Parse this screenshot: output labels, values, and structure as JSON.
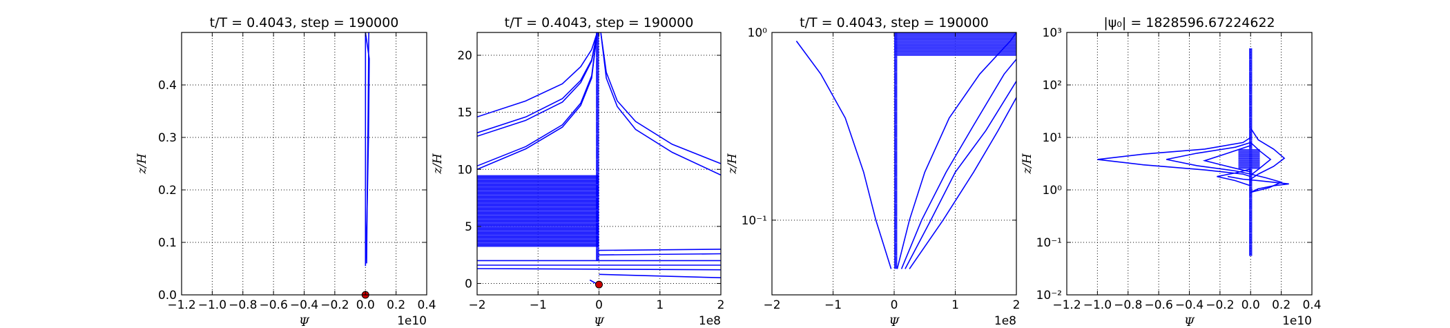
{
  "chart_data": [
    {
      "type": "line",
      "title": "t/T = 0.4043, step = 190000",
      "xlabel": "Ψ",
      "ylabel": "z/H",
      "xlim": [
        -1.2,
        0.4
      ],
      "ylim": [
        0,
        0.5
      ],
      "x_multiplier": "1e10",
      "xticks": [
        "−1.2",
        "−1.0",
        "−0.8",
        "−0.6",
        "−0.4",
        "−0.2",
        "0.0",
        "0.2",
        "0.4"
      ],
      "yticks": [
        "0.0",
        "0.1",
        "0.2",
        "0.3",
        "0.4"
      ],
      "grid": true,
      "line_color": "#0000ff",
      "marker_color": "#cc0000",
      "series": [
        {
          "x": [
            0.0,
            0.01,
            0.02,
            0.025,
            0.0,
            0.0
          ],
          "y": [
            0.055,
            0.15,
            0.3,
            0.45,
            0.5,
            0.055
          ]
        },
        {
          "x": [
            0.008,
            0.012,
            0.018,
            0.022
          ],
          "y": [
            0.06,
            0.2,
            0.35,
            0.5
          ]
        }
      ],
      "markers": [
        {
          "x": 0.0,
          "y": 0.0
        }
      ]
    },
    {
      "type": "line",
      "title": "t/T = 0.4043, step = 190000",
      "xlabel": "Ψ",
      "ylabel": "z/H",
      "xlim": [
        -2,
        2
      ],
      "ylim": [
        -1,
        22
      ],
      "x_multiplier": "1e8",
      "xticks": [
        "−2",
        "−1",
        "0",
        "1",
        "2"
      ],
      "yticks": [
        "0",
        "5",
        "10",
        "15",
        "20"
      ],
      "grid": true,
      "line_color": "#0000ff",
      "marker_color": "#cc0000",
      "series": [
        {
          "x": [
            -2.0,
            -1.2,
            -0.6,
            -0.3,
            -0.12,
            -0.03
          ],
          "y": [
            14.6,
            16.0,
            17.5,
            19.0,
            20.5,
            22.0
          ]
        },
        {
          "x": [
            -2.0,
            -1.2,
            -0.6,
            -0.3,
            -0.12,
            -0.03
          ],
          "y": [
            13.2,
            14.6,
            16.2,
            17.8,
            19.6,
            22.0
          ]
        },
        {
          "x": [
            -2.0,
            -1.2,
            -0.6,
            -0.3,
            -0.12,
            -0.03
          ],
          "y": [
            12.9,
            14.3,
            15.9,
            17.6,
            19.5,
            22.0
          ]
        },
        {
          "x": [
            -2.0,
            -1.2,
            -0.6,
            -0.3,
            -0.12,
            -0.03
          ],
          "y": [
            10.3,
            12.0,
            13.9,
            15.8,
            18.2,
            22.0
          ]
        },
        {
          "x": [
            -2.0,
            -1.2,
            -0.6,
            -0.3,
            -0.12,
            -0.03
          ],
          "y": [
            10.0,
            11.8,
            13.7,
            15.6,
            18.0,
            22.0
          ]
        },
        {
          "x": [
            2.0,
            1.2,
            0.6,
            0.3,
            0.12,
            0.03
          ],
          "y": [
            10.5,
            12.2,
            14.2,
            16.0,
            18.5,
            22.0
          ]
        },
        {
          "x": [
            2.0,
            1.2,
            0.6,
            0.3,
            0.12,
            0.03
          ],
          "y": [
            9.5,
            11.5,
            13.5,
            15.5,
            18.0,
            22.0
          ]
        },
        {
          "x": [
            0.0,
            2.0
          ],
          "y": [
            2.9,
            3.0
          ]
        },
        {
          "x": [
            0.0,
            2.0
          ],
          "y": [
            2.5,
            2.6
          ]
        },
        {
          "x": [
            -2.0,
            2.0
          ],
          "y": [
            2.0,
            2.0
          ]
        },
        {
          "x": [
            -2.0,
            2.0
          ],
          "y": [
            1.6,
            1.6
          ]
        },
        {
          "x": [
            -2.0,
            2.0
          ],
          "y": [
            1.3,
            1.2
          ]
        },
        {
          "x": [
            0.0,
            2.0
          ],
          "y": [
            0.8,
            0.5
          ]
        },
        {
          "x": [
            -0.15,
            -0.05,
            0.0,
            0.05
          ],
          "y": [
            0.3,
            0.0,
            -0.1,
            0.0
          ]
        }
      ],
      "fill_bands": [
        {
          "x_from": -2.0,
          "x_to": 0.0,
          "y_from": 3.2,
          "y_to": 9.5
        },
        {
          "x_from": -0.05,
          "x_to": 0.0,
          "y_from": 2.0,
          "y_to": 22.0
        }
      ],
      "markers": [
        {
          "x": 0.0,
          "y": -0.1
        }
      ]
    },
    {
      "type": "line",
      "title": "t/T = 0.4043, step = 190000",
      "xlabel": "Ψ",
      "ylabel": "z/H",
      "xlim": [
        -2,
        2
      ],
      "ylim": [
        0.04,
        1.0
      ],
      "yscale": "log",
      "x_multiplier": "1e8",
      "xticks": [
        "−2",
        "−1",
        "0",
        "1",
        "2"
      ],
      "yticks": [
        "10⁻¹",
        "10⁰"
      ],
      "grid": true,
      "line_color": "#0000ff",
      "series": [
        {
          "x": [
            -1.6,
            -1.2,
            -0.8,
            -0.5,
            -0.3,
            -0.15,
            -0.05
          ],
          "y": [
            0.9,
            0.6,
            0.35,
            0.18,
            0.1,
            0.07,
            0.055
          ]
        },
        {
          "x": [
            0.05,
            0.25,
            0.5,
            0.9,
            1.4,
            1.9,
            2.0
          ],
          "y": [
            0.055,
            0.1,
            0.18,
            0.35,
            0.6,
            0.9,
            1.0
          ]
        },
        {
          "x": [
            0.12,
            0.45,
            0.85,
            1.3,
            1.8,
            2.0
          ],
          "y": [
            0.055,
            0.1,
            0.18,
            0.32,
            0.6,
            0.72
          ]
        },
        {
          "x": [
            0.18,
            0.6,
            1.0,
            1.5,
            2.0
          ],
          "y": [
            0.055,
            0.1,
            0.18,
            0.3,
            0.55
          ]
        },
        {
          "x": [
            0.25,
            0.8,
            1.3,
            1.7,
            2.0
          ],
          "y": [
            0.055,
            0.1,
            0.18,
            0.3,
            0.45
          ]
        }
      ],
      "fill_bands": [
        {
          "x_from": 0.0,
          "x_to": 0.05,
          "y_from": 0.055,
          "y_to": 1.0
        },
        {
          "x_from": 0.0,
          "x_to": 2.0,
          "y_from": 0.75,
          "y_to": 1.0
        }
      ]
    },
    {
      "type": "line",
      "title": "|ψ₀| = 1828596.67224622",
      "xlabel": "Ψ",
      "ylabel": "z/H",
      "xlim": [
        -1.2,
        0.4
      ],
      "ylim": [
        0.01,
        1000
      ],
      "yscale": "log",
      "x_multiplier": "1e10",
      "xticks": [
        "−1.2",
        "−1.0",
        "−0.8",
        "−0.6",
        "−0.4",
        "−0.2",
        "0.0",
        "0.2",
        "0.4"
      ],
      "yticks": [
        "10⁻²",
        "10⁻¹",
        "10⁰",
        "10¹",
        "10²",
        "10³"
      ],
      "grid": true,
      "line_color": "#0000ff",
      "series": [
        {
          "x": [
            0.0,
            -0.05,
            -0.3,
            -0.7,
            -1.0,
            -0.7,
            -0.3,
            -0.05,
            0.0
          ],
          "y": [
            10.0,
            8.0,
            6.0,
            4.8,
            3.8,
            3.0,
            2.4,
            2.0,
            1.8
          ]
        },
        {
          "x": [
            0.0,
            -0.1,
            -0.35,
            -0.55,
            -0.35,
            -0.1,
            0.0
          ],
          "y": [
            8.0,
            6.5,
            5.0,
            3.8,
            2.9,
            2.3,
            2.0
          ]
        },
        {
          "x": [
            0.0,
            -0.15,
            -0.3,
            -0.15,
            0.0
          ],
          "y": [
            7.0,
            5.0,
            3.6,
            2.8,
            2.2
          ]
        },
        {
          "x": [
            0.0,
            0.05,
            0.15,
            0.22,
            0.15,
            0.05,
            0.0
          ],
          "y": [
            15.0,
            9.0,
            6.0,
            4.0,
            2.8,
            2.0,
            1.6
          ]
        },
        {
          "x": [
            0.0,
            0.06,
            0.13,
            0.06,
            0.0
          ],
          "y": [
            8.0,
            5.5,
            3.8,
            2.6,
            1.9
          ]
        },
        {
          "x": [
            0.0,
            -0.1,
            -0.22,
            -0.1,
            0.0
          ],
          "y": [
            2.5,
            2.1,
            1.8,
            1.5,
            1.2
          ]
        },
        {
          "x": [
            0.0,
            0.1,
            0.2,
            0.12,
            0.0
          ],
          "y": [
            2.0,
            1.7,
            1.4,
            1.1,
            0.9
          ]
        },
        {
          "x": [
            -0.15,
            -0.05,
            0.05,
            0.15,
            0.25,
            0.15,
            0.05,
            0.0
          ],
          "y": [
            1.8,
            1.6,
            1.5,
            1.4,
            1.3,
            1.2,
            1.05,
            0.9
          ]
        }
      ],
      "fill_bands": [
        {
          "x_from": -0.01,
          "x_to": 0.01,
          "y_from": 0.055,
          "y_to": 500.0
        },
        {
          "x_from": -0.08,
          "x_to": 0.06,
          "y_from": 2.5,
          "y_to": 6.0
        }
      ]
    }
  ]
}
